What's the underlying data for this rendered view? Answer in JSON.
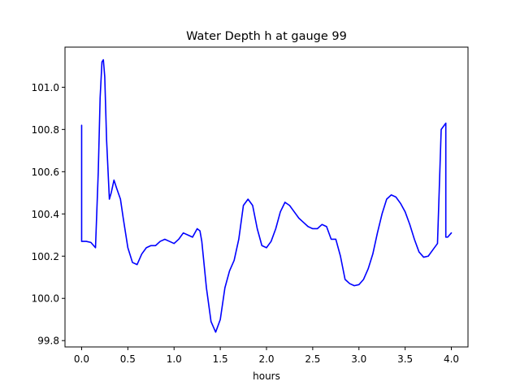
{
  "chart_data": {
    "type": "line",
    "title": "Water Depth h at gauge 99",
    "xlabel": "hours",
    "ylabel": "",
    "xlim": [
      -0.18,
      4.18
    ],
    "ylim": [
      99.77,
      101.19
    ],
    "xticks": [
      0.0,
      0.5,
      1.0,
      1.5,
      2.0,
      2.5,
      3.0,
      3.5,
      4.0
    ],
    "xtick_labels": [
      "0.0",
      "0.5",
      "1.0",
      "1.5",
      "2.0",
      "2.5",
      "3.0",
      "3.5",
      "4.0"
    ],
    "yticks": [
      99.8,
      100.0,
      100.2,
      100.4,
      100.6,
      100.8,
      101.0
    ],
    "ytick_labels": [
      "99.8",
      "100.0",
      "100.2",
      "100.4",
      "100.6",
      "100.8",
      "101.0"
    ],
    "grid": false,
    "series": [
      {
        "color": "#0000ff",
        "x": [
          0.0,
          0.0,
          0.05,
          0.1,
          0.15,
          0.18,
          0.2,
          0.22,
          0.235,
          0.25,
          0.27,
          0.3,
          0.32,
          0.35,
          0.38,
          0.42,
          0.45,
          0.5,
          0.55,
          0.6,
          0.65,
          0.7,
          0.75,
          0.8,
          0.85,
          0.9,
          0.95,
          1.0,
          1.05,
          1.1,
          1.15,
          1.2,
          1.25,
          1.28,
          1.3,
          1.35,
          1.4,
          1.45,
          1.5,
          1.55,
          1.6,
          1.65,
          1.7,
          1.75,
          1.8,
          1.85,
          1.9,
          1.95,
          2.0,
          2.05,
          2.1,
          2.15,
          2.2,
          2.25,
          2.3,
          2.35,
          2.4,
          2.45,
          2.5,
          2.55,
          2.6,
          2.65,
          2.7,
          2.75,
          2.8,
          2.85,
          2.9,
          2.95,
          3.0,
          3.05,
          3.1,
          3.15,
          3.2,
          3.25,
          3.3,
          3.35,
          3.4,
          3.45,
          3.5,
          3.55,
          3.6,
          3.65,
          3.7,
          3.75,
          3.8,
          3.85,
          3.89,
          3.89,
          3.94,
          3.94,
          3.96,
          4.0
        ],
        "y": [
          100.82,
          100.27,
          100.27,
          100.265,
          100.24,
          100.6,
          100.95,
          101.12,
          101.13,
          101.05,
          100.75,
          100.47,
          100.5,
          100.56,
          100.52,
          100.47,
          100.38,
          100.24,
          100.17,
          100.16,
          100.21,
          100.24,
          100.25,
          100.25,
          100.27,
          100.28,
          100.27,
          100.26,
          100.28,
          100.31,
          100.3,
          100.29,
          100.33,
          100.32,
          100.27,
          100.05,
          99.89,
          99.84,
          99.9,
          100.05,
          100.13,
          100.18,
          100.28,
          100.44,
          100.47,
          100.44,
          100.33,
          100.25,
          100.24,
          100.27,
          100.33,
          100.41,
          100.455,
          100.44,
          100.41,
          100.38,
          100.36,
          100.34,
          100.33,
          100.33,
          100.35,
          100.34,
          100.28,
          100.28,
          100.2,
          100.09,
          100.07,
          100.06,
          100.065,
          100.09,
          100.14,
          100.21,
          100.31,
          100.4,
          100.47,
          100.49,
          100.48,
          100.45,
          100.41,
          100.35,
          100.28,
          100.22,
          100.195,
          100.2,
          100.23,
          100.26,
          100.8,
          100.8,
          100.83,
          100.29,
          100.29,
          100.31
        ]
      }
    ]
  }
}
